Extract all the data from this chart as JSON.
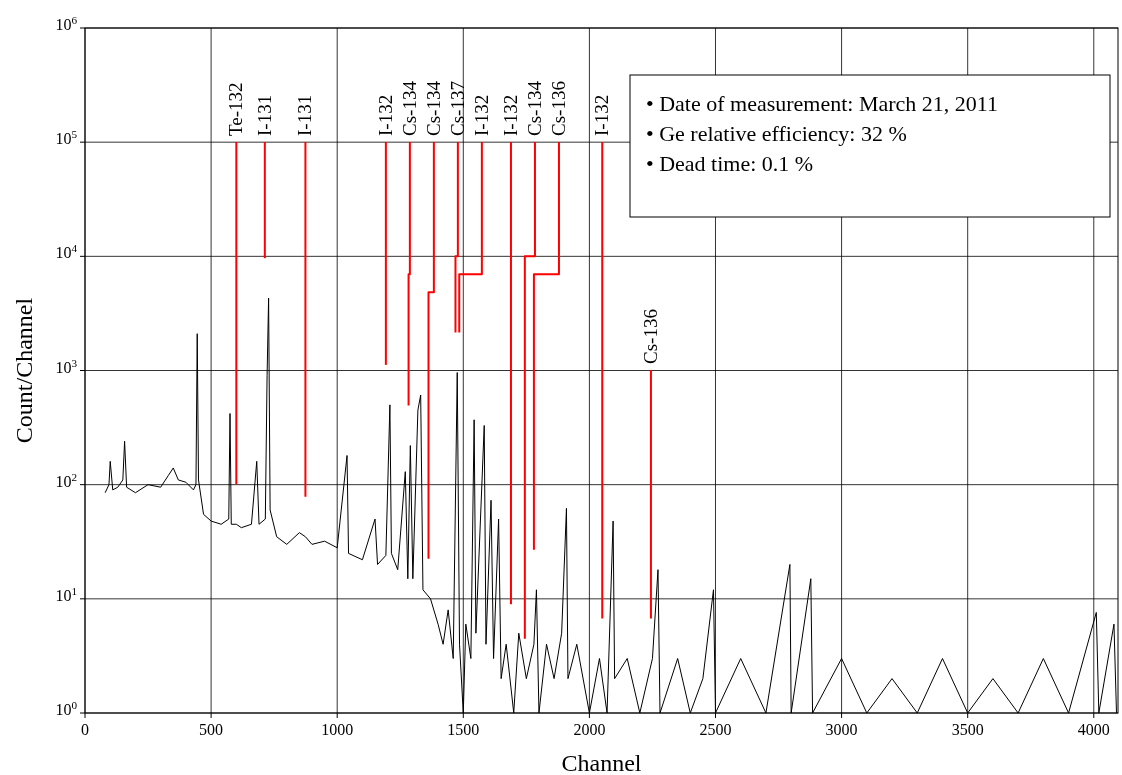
{
  "chart_data": {
    "type": "line",
    "xlabel": "Channel",
    "ylabel": "Count/Channel",
    "log": "y",
    "grid": true,
    "xlim": [
      0,
      4096
    ],
    "xticks": [
      0,
      500,
      1000,
      1500,
      2000,
      2500,
      3000,
      3500,
      4000
    ],
    "ylim": [
      1,
      1000000
    ],
    "yticks": [
      {
        "value": 1,
        "label": "10$^{0}$"
      },
      {
        "value": 10,
        "label": "10$^{1}$"
      },
      {
        "value": 100,
        "label": "10$^{2}$"
      },
      {
        "value": 1000,
        "label": "10$^{3}$"
      },
      {
        "value": 10000,
        "label": "10$^{4}$"
      },
      {
        "value": 100000,
        "label": "10$^{5}$"
      },
      {
        "value": 1000000,
        "label": "10$^{6}$"
      }
    ],
    "series": [
      {
        "color": "#000000",
        "x": [
          80,
          95,
          100,
          110,
          130,
          150,
          157,
          165,
          200,
          250,
          300,
          330,
          350,
          370,
          400,
          430,
          440,
          445,
          450,
          470,
          500,
          540,
          570,
          575,
          580,
          600,
          620,
          660,
          681,
          690,
          715,
          722,
          728,
          734,
          760,
          800,
          850,
          874,
          900,
          950,
          1000,
          1039,
          1045,
          1100,
          1150,
          1160,
          1193,
          1209,
          1215,
          1240,
          1270,
          1280,
          1290,
          1300,
          1320,
          1331,
          1340,
          1370,
          1400,
          1420,
          1440,
          1460,
          1476,
          1485,
          1500,
          1510,
          1530,
          1543,
          1550,
          1583,
          1590,
          1610,
          1620,
          1640,
          1650,
          1670,
          1700,
          1720,
          1750,
          1780,
          1790,
          1800,
          1830,
          1860,
          1890,
          1909,
          1915,
          1950,
          2000,
          2040,
          2070,
          2094,
          2100,
          2150,
          2200,
          2250,
          2272,
          2280,
          2350,
          2400,
          2450,
          2492,
          2500,
          2600,
          2700,
          2795,
          2800,
          2878,
          2885,
          3000,
          3100,
          3200,
          3300,
          3400,
          3500,
          3600,
          3700,
          3800,
          3900,
          4010,
          4020,
          4080,
          4090
        ],
        "values": [
          85,
          100,
          160,
          90,
          95,
          110,
          240,
          95,
          85,
          100,
          95,
          120,
          140,
          110,
          105,
          90,
          100,
          2100,
          110,
          55,
          48,
          45,
          50,
          420,
          45,
          45,
          42,
          45,
          160,
          45,
          50,
          900,
          4300,
          60,
          35,
          30,
          38,
          35,
          30,
          32,
          28,
          180,
          25,
          22,
          50,
          20,
          24,
          500,
          25,
          18,
          130,
          15,
          220,
          15,
          450,
          610,
          12,
          10,
          6,
          4,
          8,
          3,
          960,
          4,
          1,
          6,
          3,
          370,
          5,
          330,
          4,
          73,
          3,
          50,
          2,
          4,
          1,
          5,
          2,
          4,
          12,
          1,
          4,
          2,
          5,
          62,
          2,
          4,
          1,
          3,
          1,
          48,
          2,
          3,
          1,
          3,
          18,
          1,
          3,
          1,
          2,
          12,
          1,
          3,
          1,
          20,
          1,
          15,
          1,
          3,
          1,
          2,
          1,
          3,
          1,
          2,
          1,
          3,
          1,
          7.6,
          1,
          6,
          1
        ]
      }
    ],
    "annotations": [
      {
        "text": "Te-132",
        "x": 600
      },
      {
        "text": "I-131",
        "x": 713
      },
      {
        "text": "I-131",
        "x": 874
      },
      {
        "text": "I-132",
        "x": 1193
      },
      {
        "text": "Cs-134",
        "x": 1283
      },
      {
        "text": "Cs-134",
        "x": 1362
      },
      {
        "text": "Cs-137",
        "x": 1469
      },
      {
        "text": "I-132",
        "x": 1484
      },
      {
        "text": "I-132",
        "x": 1689
      },
      {
        "text": "Cs-134",
        "x": 1744
      },
      {
        "text": "Cs-136",
        "x": 1780
      },
      {
        "text": "I-132",
        "x": 2051
      },
      {
        "text": "Cs-136",
        "x": 2244
      },
      "• Date of measurement: March 21, 2011",
      "• Ge relative efficiency: 32 %",
      "• Dead time: 0.1 %"
    ]
  }
}
